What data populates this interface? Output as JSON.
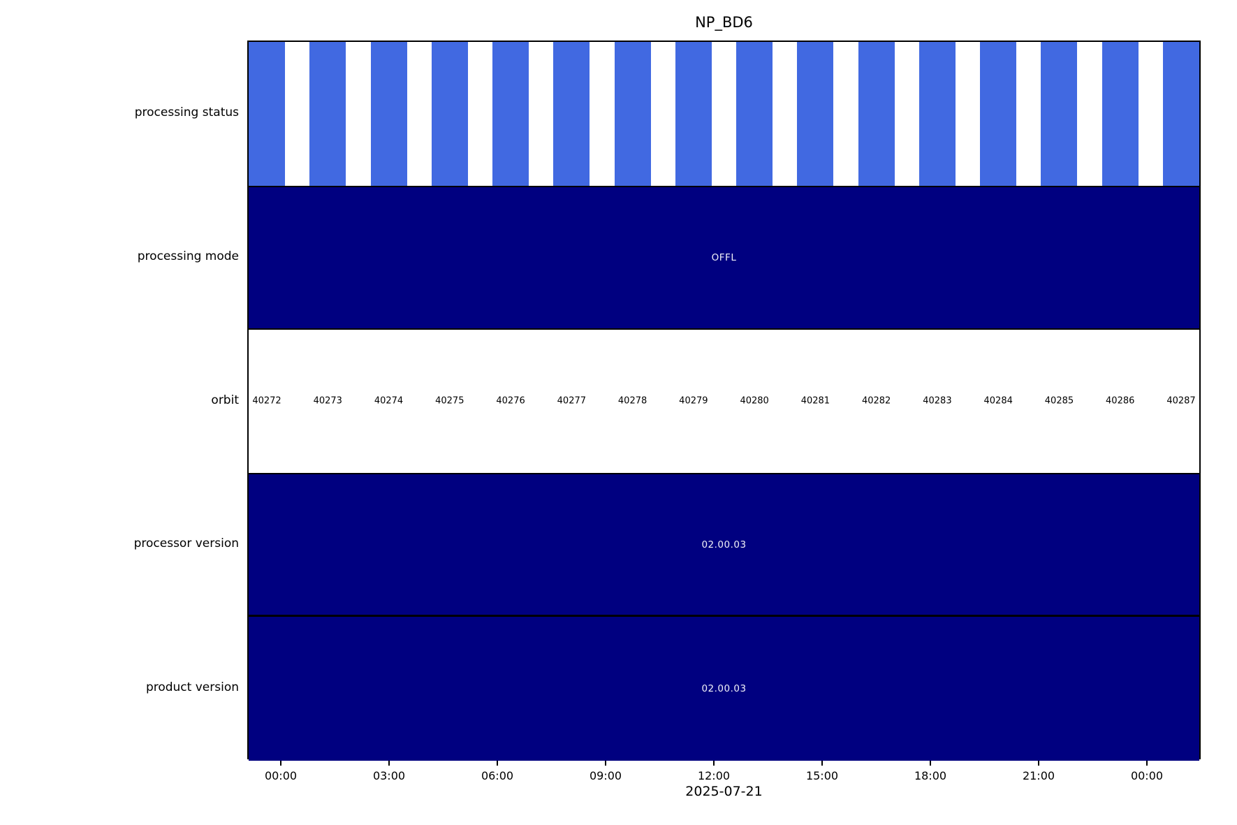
{
  "title": "NP_BD6",
  "date_label": "2025-07-21",
  "rows": {
    "processing_status": {
      "label": "processing status"
    },
    "processing_mode": {
      "label": "processing mode",
      "value": "OFFL"
    },
    "orbit": {
      "label": "orbit"
    },
    "processor_version": {
      "label": "processor version",
      "value": "02.00.03"
    },
    "product_version": {
      "label": "product version",
      "value": "02.00.03"
    }
  },
  "orbits": [
    40272,
    40273,
    40274,
    40275,
    40276,
    40277,
    40278,
    40279,
    40280,
    40281,
    40282,
    40283,
    40284,
    40285,
    40286,
    40287
  ],
  "x_tick_labels": [
    "00:00",
    "03:00",
    "06:00",
    "09:00",
    "12:00",
    "15:00",
    "18:00",
    "21:00",
    "00:00"
  ],
  "colors": {
    "status_bar_blue": "#4169E1",
    "band_navy": "#000080",
    "band_text": "#f2f2f8",
    "axis_black": "#000000"
  },
  "chart_data": {
    "type": "bar",
    "subtype": "categorical-timeline-bands",
    "title": "NP_BD6",
    "xlabel": "2025-07-21",
    "x_tick_labels": [
      "00:00",
      "03:00",
      "06:00",
      "09:00",
      "12:00",
      "15:00",
      "18:00",
      "21:00",
      "00:00"
    ],
    "x_axis_note": "time of day over ~26 h window spanning 2025-07-21; ticks every 3 hours",
    "legend": "none",
    "grid": false,
    "rows": [
      {
        "label": "processing status",
        "representation": "16 royal-blue bars (one per orbit, ~60 min each, ~101.5 min apart) on white background",
        "bar_count": 16,
        "bar_color": "#4169E1"
      },
      {
        "label": "processing mode",
        "representation": "single navy band spanning full time range",
        "value": "OFFL",
        "band_color": "#000080"
      },
      {
        "label": "orbit",
        "representation": "orbit numbers printed at each orbit start on white background",
        "values": [
          40272,
          40273,
          40274,
          40275,
          40276,
          40277,
          40278,
          40279,
          40280,
          40281,
          40282,
          40283,
          40284,
          40285,
          40286,
          40287
        ]
      },
      {
        "label": "processor version",
        "representation": "single navy band spanning full time range",
        "value": "02.00.03",
        "band_color": "#000080"
      },
      {
        "label": "product version",
        "representation": "single navy band spanning full time range",
        "value": "02.00.03",
        "band_color": "#000080"
      }
    ]
  }
}
